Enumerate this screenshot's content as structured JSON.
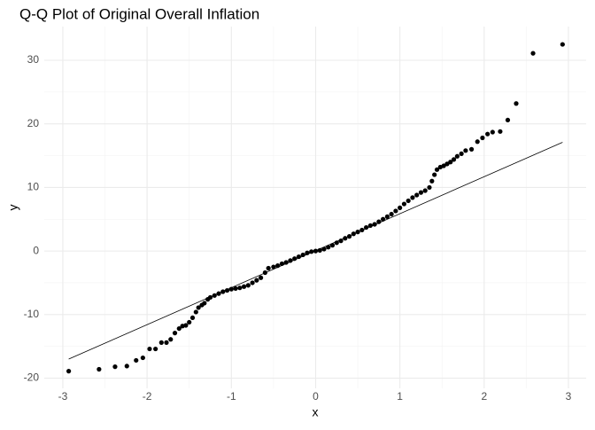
{
  "chart_data": {
    "type": "scatter",
    "title": "Q-Q Plot of Original Overall Inflation",
    "x_label": "x",
    "y_label": "y",
    "x": [
      -2.93,
      -2.57,
      -2.38,
      -2.24,
      -2.13,
      -2.05,
      -1.97,
      -1.9,
      -1.83,
      -1.77,
      -1.72,
      -1.67,
      -1.62,
      -1.58,
      -1.54,
      -1.5,
      -1.46,
      -1.42,
      -1.39,
      -1.35,
      -1.32,
      -1.28,
      -1.25,
      -1.2,
      -1.15,
      -1.1,
      -1.05,
      -1.0,
      -0.95,
      -0.9,
      -0.85,
      -0.8,
      -0.75,
      -0.7,
      -0.65,
      -0.6,
      -0.56,
      -0.5,
      -0.45,
      -0.4,
      -0.35,
      -0.3,
      -0.25,
      -0.2,
      -0.15,
      -0.1,
      -0.05,
      0,
      0.05,
      0.1,
      0.15,
      0.2,
      0.25,
      0.3,
      0.35,
      0.4,
      0.45,
      0.5,
      0.55,
      0.6,
      0.65,
      0.7,
      0.75,
      0.8,
      0.85,
      0.9,
      0.95,
      1.0,
      1.05,
      1.1,
      1.15,
      1.2,
      1.25,
      1.3,
      1.35,
      1.38,
      1.41,
      1.44,
      1.48,
      1.52,
      1.56,
      1.6,
      1.64,
      1.68,
      1.73,
      1.78,
      1.85,
      1.92,
      1.98,
      2.04,
      2.1,
      2.19,
      2.28,
      2.38,
      2.58,
      2.93
    ],
    "values": [
      -18.9,
      -18.6,
      -18.2,
      -18.1,
      -17.2,
      -16.8,
      -15.4,
      -15.4,
      -14.4,
      -14.4,
      -13.9,
      -12.9,
      -12.2,
      -11.8,
      -11.7,
      -11.2,
      -10.5,
      -9.6,
      -8.9,
      -8.5,
      -8.2,
      -7.6,
      -7.3,
      -7.0,
      -6.7,
      -6.4,
      -6.2,
      -6.0,
      -5.9,
      -5.8,
      -5.6,
      -5.4,
      -5.0,
      -4.6,
      -4.2,
      -3.4,
      -2.7,
      -2.5,
      -2.3,
      -2.0,
      -1.8,
      -1.5,
      -1.2,
      -0.9,
      -0.6,
      -0.3,
      -0.1,
      0,
      0.1,
      0.3,
      0.6,
      0.9,
      1.3,
      1.6,
      2.0,
      2.3,
      2.7,
      3.0,
      3.3,
      3.7,
      4.0,
      4.2,
      4.6,
      5.0,
      5.4,
      5.8,
      6.3,
      6.8,
      7.4,
      7.9,
      8.4,
      8.8,
      9.2,
      9.5,
      10.0,
      11.0,
      12.0,
      12.8,
      13.2,
      13.4,
      13.7,
      14.0,
      14.4,
      14.9,
      15.3,
      15.8,
      16.0,
      17.2,
      17.8,
      18.4,
      18.7,
      18.8,
      20.6,
      23.2,
      31.1,
      32.5
    ],
    "color": "#000000",
    "reference_line": {
      "x": [
        -2.93,
        2.93
      ],
      "values": [
        -17.0,
        17.1
      ]
    },
    "xlim": [
      -3.22,
      3.21
    ],
    "ylim": [
      -21.6,
      35.3
    ],
    "xticks": [
      -3,
      -2,
      -1,
      0,
      1,
      2,
      3
    ],
    "yticks": [
      -20,
      -10,
      0,
      10,
      20,
      30
    ],
    "grid": true,
    "minor_grid": true
  }
}
